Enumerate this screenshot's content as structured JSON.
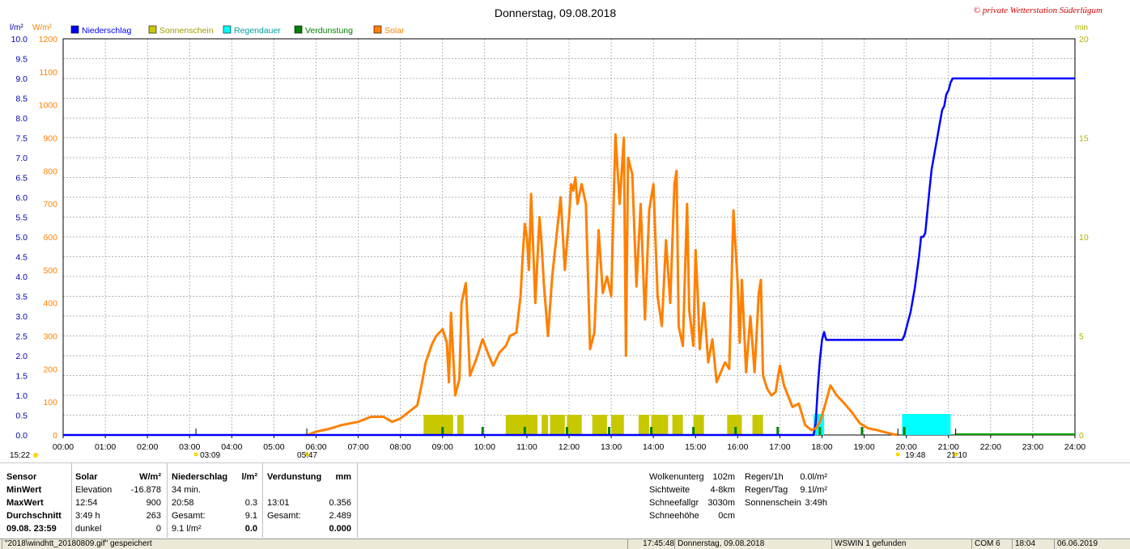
{
  "title": "Donnerstag, 09.08.2018",
  "copyright": "© private Wetterstation Süderlügum",
  "legend": [
    {
      "name": "Niederschlag",
      "color": "#0000ff"
    },
    {
      "name": "Sonnenschein",
      "color": "#c8c800"
    },
    {
      "name": "Regendauer",
      "color": "#00ffff"
    },
    {
      "name": "Verdunstung",
      "color": "#008000"
    },
    {
      "name": "Solar",
      "color": "#ff8000"
    }
  ],
  "unit_left1": "l/m²",
  "unit_left2": "W/m²",
  "unit_right": "min",
  "chart_data": {
    "type": "line",
    "x_unit": "hours",
    "xlim": [
      0,
      24
    ],
    "x_ticks": [
      "00:00",
      "01:00",
      "02:00",
      "03:00",
      "04:00",
      "05:00",
      "06:00",
      "07:00",
      "08:00",
      "09:00",
      "10:00",
      "11:00",
      "12:00",
      "13:00",
      "14:00",
      "15:00",
      "16:00",
      "17:00",
      "18:00",
      "19:00",
      "20:00",
      "21:00",
      "22:00",
      "23:00",
      "24:00"
    ],
    "y_left_precip": {
      "ylim": [
        0,
        10
      ],
      "ticks": [
        "0.0",
        "0.5",
        "1.0",
        "1.5",
        "2.0",
        "2.5",
        "3.0",
        "3.5",
        "4.0",
        "4.5",
        "5.0",
        "5.5",
        "6.0",
        "6.5",
        "7.0",
        "7.5",
        "8.0",
        "8.5",
        "9.0",
        "9.5",
        "10.0"
      ]
    },
    "y_left_solar": {
      "ylim": [
        0,
        1200
      ],
      "ticks": [
        "0",
        "100",
        "200",
        "300",
        "400",
        "500",
        "600",
        "700",
        "800",
        "900",
        "1000",
        "1100",
        "1200"
      ]
    },
    "y_right_min": {
      "ylim": [
        0,
        20
      ],
      "ticks": [
        "0",
        "5",
        "10",
        "15",
        "20"
      ]
    },
    "series": [
      {
        "name": "Niederschlag",
        "axis": "precip",
        "color": "#0000ff",
        "points": [
          [
            0,
            0
          ],
          [
            17.8,
            0
          ],
          [
            17.85,
            0.3
          ],
          [
            17.9,
            1.2
          ],
          [
            17.95,
            1.9
          ],
          [
            18.0,
            2.4
          ],
          [
            18.05,
            2.6
          ],
          [
            18.1,
            2.4
          ],
          [
            18.15,
            2.4
          ],
          [
            18.2,
            2.4
          ],
          [
            19.0,
            2.4
          ],
          [
            19.9,
            2.4
          ],
          [
            19.95,
            2.5
          ],
          [
            20.0,
            2.7
          ],
          [
            20.1,
            3.1
          ],
          [
            20.2,
            3.7
          ],
          [
            20.3,
            4.5
          ],
          [
            20.35,
            5.0
          ],
          [
            20.4,
            5.0
          ],
          [
            20.45,
            5.1
          ],
          [
            20.55,
            6.2
          ],
          [
            20.6,
            6.7
          ],
          [
            20.7,
            7.3
          ],
          [
            20.8,
            7.9
          ],
          [
            20.85,
            8.2
          ],
          [
            20.9,
            8.3
          ],
          [
            20.95,
            8.6
          ],
          [
            21.0,
            8.7
          ],
          [
            21.05,
            8.9
          ],
          [
            21.1,
            9.0
          ],
          [
            21.15,
            9.0
          ],
          [
            24,
            9.0
          ]
        ]
      },
      {
        "name": "Solar",
        "axis": "solar",
        "color": "#ff8000",
        "points": [
          [
            5.8,
            0
          ],
          [
            6.0,
            10
          ],
          [
            6.3,
            18
          ],
          [
            6.6,
            30
          ],
          [
            7.0,
            40
          ],
          [
            7.3,
            55
          ],
          [
            7.6,
            55
          ],
          [
            7.8,
            40
          ],
          [
            8.0,
            50
          ],
          [
            8.2,
            70
          ],
          [
            8.4,
            90
          ],
          [
            8.5,
            150
          ],
          [
            8.6,
            220
          ],
          [
            8.75,
            275
          ],
          [
            8.85,
            300
          ],
          [
            9.0,
            320
          ],
          [
            9.1,
            280
          ],
          [
            9.15,
            160
          ],
          [
            9.2,
            370
          ],
          [
            9.3,
            120
          ],
          [
            9.4,
            170
          ],
          [
            9.45,
            400
          ],
          [
            9.55,
            460
          ],
          [
            9.65,
            180
          ],
          [
            9.8,
            230
          ],
          [
            9.95,
            290
          ],
          [
            10.1,
            240
          ],
          [
            10.2,
            210
          ],
          [
            10.35,
            250
          ],
          [
            10.5,
            270
          ],
          [
            10.6,
            300
          ],
          [
            10.75,
            310
          ],
          [
            10.85,
            420
          ],
          [
            10.9,
            540
          ],
          [
            10.95,
            640
          ],
          [
            11.0,
            600
          ],
          [
            11.05,
            500
          ],
          [
            11.1,
            730
          ],
          [
            11.2,
            400
          ],
          [
            11.3,
            660
          ],
          [
            11.35,
            580
          ],
          [
            11.4,
            460
          ],
          [
            11.5,
            300
          ],
          [
            11.6,
            480
          ],
          [
            11.7,
            600
          ],
          [
            11.8,
            720
          ],
          [
            11.9,
            500
          ],
          [
            12.0,
            660
          ],
          [
            12.05,
            760
          ],
          [
            12.1,
            740
          ],
          [
            12.15,
            780
          ],
          [
            12.2,
            700
          ],
          [
            12.3,
            760
          ],
          [
            12.4,
            700
          ],
          [
            12.5,
            260
          ],
          [
            12.6,
            310
          ],
          [
            12.7,
            620
          ],
          [
            12.8,
            430
          ],
          [
            12.9,
            480
          ],
          [
            13.0,
            420
          ],
          [
            13.1,
            910
          ],
          [
            13.2,
            700
          ],
          [
            13.3,
            900
          ],
          [
            13.35,
            240
          ],
          [
            13.4,
            840
          ],
          [
            13.5,
            790
          ],
          [
            13.6,
            450
          ],
          [
            13.7,
            700
          ],
          [
            13.8,
            350
          ],
          [
            13.9,
            680
          ],
          [
            14.0,
            760
          ],
          [
            14.1,
            420
          ],
          [
            14.2,
            330
          ],
          [
            14.3,
            590
          ],
          [
            14.4,
            400
          ],
          [
            14.5,
            760
          ],
          [
            14.55,
            800
          ],
          [
            14.6,
            330
          ],
          [
            14.7,
            270
          ],
          [
            14.8,
            700
          ],
          [
            14.85,
            380
          ],
          [
            14.95,
            270
          ],
          [
            15.0,
            560
          ],
          [
            15.05,
            430
          ],
          [
            15.1,
            260
          ],
          [
            15.2,
            400
          ],
          [
            15.3,
            220
          ],
          [
            15.4,
            290
          ],
          [
            15.5,
            160
          ],
          [
            15.7,
            220
          ],
          [
            15.8,
            200
          ],
          [
            15.9,
            680
          ],
          [
            16.0,
            460
          ],
          [
            16.05,
            280
          ],
          [
            16.1,
            470
          ],
          [
            16.2,
            190
          ],
          [
            16.3,
            360
          ],
          [
            16.4,
            190
          ],
          [
            16.5,
            430
          ],
          [
            16.55,
            470
          ],
          [
            16.6,
            180
          ],
          [
            16.7,
            140
          ],
          [
            16.8,
            120
          ],
          [
            16.9,
            130
          ],
          [
            17.0,
            210
          ],
          [
            17.1,
            150
          ],
          [
            17.3,
            85
          ],
          [
            17.45,
            95
          ],
          [
            17.6,
            30
          ],
          [
            17.75,
            15
          ],
          [
            17.85,
            20
          ],
          [
            17.95,
            40
          ],
          [
            18.05,
            80
          ],
          [
            18.2,
            150
          ],
          [
            18.35,
            120
          ],
          [
            18.5,
            100
          ],
          [
            18.7,
            70
          ],
          [
            18.9,
            35
          ],
          [
            19.1,
            20
          ],
          [
            19.3,
            15
          ],
          [
            19.5,
            8
          ],
          [
            19.7,
            2
          ],
          [
            19.8,
            0
          ]
        ]
      }
    ],
    "sun_intervals": [
      [
        8.55,
        9.25
      ],
      [
        9.35,
        9.5
      ],
      [
        10.5,
        11.25
      ],
      [
        11.35,
        11.5
      ],
      [
        11.55,
        11.9
      ],
      [
        11.95,
        12.3
      ],
      [
        12.55,
        12.9
      ],
      [
        13.0,
        13.3
      ],
      [
        13.65,
        13.9
      ],
      [
        13.95,
        14.35
      ],
      [
        14.45,
        14.7
      ],
      [
        14.95,
        15.2
      ],
      [
        15.75,
        16.1
      ],
      [
        16.35,
        16.6
      ]
    ],
    "rain_intervals": [
      [
        17.8,
        18.05
      ],
      [
        19.9,
        21.05
      ]
    ],
    "evaporation_ticks": [
      9.0,
      9.95,
      10.95,
      11.95,
      12.95,
      13.95,
      14.95,
      15.95,
      16.95,
      17.95,
      18.95,
      19.95
    ],
    "markers": {
      "sunrise": "05:47",
      "sunset": "21:10",
      "moonrise": "03:09",
      "moonset": "19:48",
      "moonrise_time_left": "15:22"
    }
  },
  "stats": {
    "sensor_header": "Sensor",
    "minwert": "MinWert",
    "maxwert": "MaxWert",
    "durchschnitt": "Durchschnitt",
    "date": "09.08. 23:59",
    "solar_header": "Solar",
    "solar_unit": "W/m²",
    "solar_rows": [
      [
        "Elevation",
        "-16.878"
      ],
      [
        "12:54",
        "900"
      ],
      [
        "3:49 h",
        "263"
      ],
      [
        "dunkel",
        "0"
      ]
    ],
    "precip_header": "Niederschlag",
    "precip_unit": "l/m²",
    "precip_rows": [
      [
        "34 min.",
        ""
      ],
      [
        "20:58",
        "0.3"
      ],
      [
        "Gesamt:",
        "9.1"
      ],
      [
        "9.1 l/m²",
        "0.0"
      ]
    ],
    "evap_header": "Verdunstung",
    "evap_unit": "mm",
    "evap_rows": [
      [
        "",
        ""
      ],
      [
        "13:01",
        "0.356"
      ],
      [
        "Gesamt:",
        "2.489"
      ],
      [
        "",
        "0.000"
      ]
    ],
    "cloud": [
      [
        "Wolkenunterg",
        "102m"
      ],
      [
        "Sichtweite",
        "4-8km"
      ],
      [
        "Schneefallgr",
        "3030m"
      ],
      [
        "Schneehöhe",
        "0cm"
      ]
    ],
    "rain": [
      [
        "Regen/1h",
        "0.0l/m²"
      ],
      [
        "Regen/Tag",
        "9.1l/m²"
      ],
      [
        "Sonnenschein",
        "3:49h"
      ]
    ]
  },
  "status": [
    "\"2018\\windhtt_20180809.gif\" gespeichert",
    "17:45:48",
    "Donnerstag, 09.08.2018",
    "WSWIN 1 gefunden",
    "COM 6",
    "18:04",
    "06.06.2019"
  ]
}
